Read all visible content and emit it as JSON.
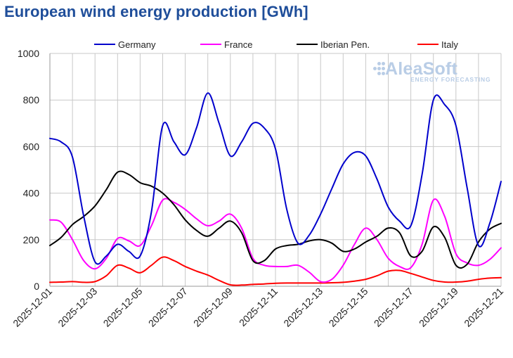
{
  "title": "European wind energy production [GWh]",
  "logo": {
    "name": "AleaSoft",
    "tagline": "ENERGY FORECASTING",
    "icon": "dots-logo-icon"
  },
  "chart_data": {
    "type": "line",
    "title": "European wind energy production [GWh]",
    "xlabel": "",
    "ylabel": "",
    "ylim": [
      0,
      1000
    ],
    "yticks": [
      "0",
      "200",
      "400",
      "600",
      "800",
      "1000"
    ],
    "xlim": [
      0,
      20
    ],
    "xticks": [
      "2025-12-01",
      "2025-12-03",
      "2025-12-05",
      "2025-12-07",
      "2025-12-09",
      "2025-12-11",
      "2025-12-13",
      "2025-12-15",
      "2025-12-17",
      "2025-12-19",
      "2025-12-21"
    ],
    "grid": true,
    "legend_position": "top",
    "series": [
      {
        "name": "Germany",
        "color": "#0000cc",
        "x": [
          0,
          0.5,
          1,
          1.5,
          2,
          2.5,
          3,
          3.5,
          4,
          4.5,
          5,
          5.5,
          6,
          6.5,
          7,
          7.5,
          8,
          8.5,
          9,
          9.5,
          10,
          10.5,
          11,
          11.5,
          12,
          12.5,
          13,
          13.5,
          14,
          14.5,
          15,
          15.5,
          16,
          16.5,
          17,
          17.5,
          18,
          18.5,
          19,
          19.5,
          20
        ],
        "values": [
          635,
          620,
          555,
          300,
          105,
          130,
          180,
          150,
          130,
          320,
          690,
          620,
          565,
          680,
          830,
          700,
          560,
          620,
          700,
          680,
          590,
          330,
          185,
          220,
          310,
          420,
          525,
          575,
          560,
          460,
          340,
          280,
          260,
          480,
          800,
          780,
          690,
          420,
          175,
          270,
          450
        ]
      },
      {
        "name": "France",
        "color": "#ff00ff",
        "x": [
          0,
          0.5,
          1,
          1.5,
          2,
          2.5,
          3,
          3.5,
          4,
          4.5,
          5,
          5.5,
          6,
          6.5,
          7,
          7.5,
          8,
          8.5,
          9,
          9.5,
          10,
          10.5,
          11,
          11.5,
          12,
          12.5,
          13,
          13.5,
          14,
          14.5,
          15,
          15.5,
          16,
          16.5,
          17,
          17.5,
          18,
          18.5,
          19,
          19.5,
          20
        ],
        "values": [
          285,
          275,
          200,
          110,
          75,
          120,
          205,
          195,
          175,
          260,
          370,
          360,
          330,
          290,
          260,
          280,
          310,
          250,
          120,
          90,
          85,
          85,
          90,
          60,
          20,
          30,
          90,
          180,
          250,
          200,
          120,
          85,
          80,
          180,
          370,
          300,
          140,
          100,
          90,
          115,
          165
        ]
      },
      {
        "name": "Iberian Pen.",
        "color": "#000000",
        "x": [
          0,
          0.5,
          1,
          1.5,
          2,
          2.5,
          3,
          3.5,
          4,
          4.5,
          5,
          5.5,
          6,
          6.5,
          7,
          7.5,
          8,
          8.5,
          9,
          9.5,
          10,
          10.5,
          11,
          11.5,
          12,
          12.5,
          13,
          13.5,
          14,
          14.5,
          15,
          15.5,
          16,
          16.5,
          17,
          17.5,
          18,
          18.5,
          19,
          19.5,
          20
        ],
        "values": [
          175,
          210,
          265,
          300,
          345,
          415,
          490,
          480,
          445,
          430,
          400,
          350,
          285,
          240,
          215,
          250,
          280,
          230,
          110,
          110,
          160,
          175,
          180,
          195,
          200,
          185,
          150,
          160,
          190,
          215,
          250,
          230,
          130,
          150,
          255,
          210,
          90,
          95,
          190,
          245,
          270
        ]
      },
      {
        "name": "Italy",
        "color": "#ff0000",
        "x": [
          0,
          0.5,
          1,
          1.5,
          2,
          2.5,
          3,
          3.5,
          4,
          4.5,
          5,
          5.5,
          6,
          6.5,
          7,
          7.5,
          8,
          8.5,
          9,
          9.5,
          10,
          10.5,
          11,
          11.5,
          12,
          12.5,
          13,
          13.5,
          14,
          14.5,
          15,
          15.5,
          16,
          16.5,
          17,
          17.5,
          18,
          18.5,
          19,
          19.5,
          20
        ],
        "values": [
          17,
          18,
          20,
          17,
          20,
          45,
          90,
          78,
          58,
          90,
          125,
          110,
          85,
          65,
          48,
          25,
          6,
          5,
          8,
          10,
          13,
          14,
          14,
          14,
          14,
          15,
          17,
          22,
          30,
          45,
          65,
          68,
          55,
          40,
          25,
          18,
          18,
          22,
          30,
          35,
          37
        ]
      }
    ]
  }
}
